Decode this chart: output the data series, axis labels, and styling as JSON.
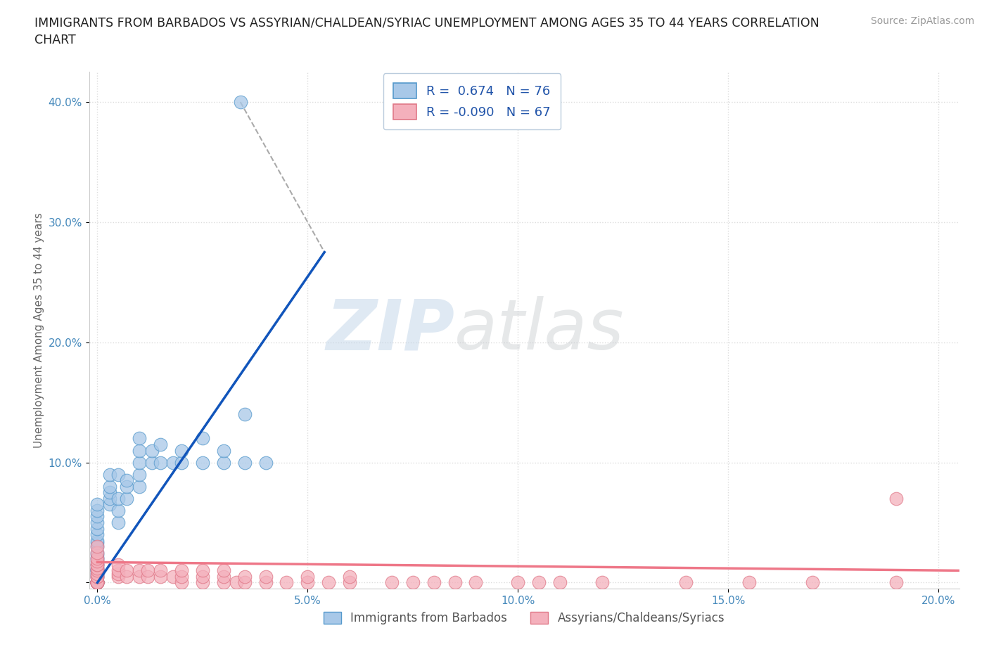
{
  "title_line1": "IMMIGRANTS FROM BARBADOS VS ASSYRIAN/CHALDEAN/SYRIAC UNEMPLOYMENT AMONG AGES 35 TO 44 YEARS CORRELATION",
  "title_line2": "CHART",
  "source_text": "Source: ZipAtlas.com",
  "ylabel": "Unemployment Among Ages 35 to 44 years",
  "xlim": [
    -0.002,
    0.205
  ],
  "ylim": [
    -0.005,
    0.425
  ],
  "xticks": [
    0.0,
    0.05,
    0.1,
    0.15,
    0.2
  ],
  "xticklabels": [
    "0.0%",
    "5.0%",
    "10.0%",
    "15.0%",
    "20.0%"
  ],
  "yticks": [
    0.0,
    0.1,
    0.2,
    0.3,
    0.4
  ],
  "yticklabels": [
    "",
    "10.0%",
    "20.0%",
    "30.0%",
    "40.0%"
  ],
  "blue_R": 0.674,
  "blue_N": 76,
  "pink_R": -0.09,
  "pink_N": 67,
  "blue_color": "#a8c8e8",
  "pink_color": "#f4b0bc",
  "blue_edge_color": "#5599cc",
  "pink_edge_color": "#e07888",
  "blue_line_color": "#1155bb",
  "pink_line_color": "#ee7788",
  "blue_label": "Immigrants from Barbados",
  "pink_label": "Assyrians/Chaldeans/Syriacs",
  "watermark_zip": "ZIP",
  "watermark_atlas": "atlas",
  "background_color": "#ffffff",
  "grid_color": "#dddddd",
  "title_color": "#222222",
  "source_color": "#999999",
  "axis_label_color": "#666666",
  "tick_color": "#4488bb",
  "legend_text_color": "#2255aa",
  "title_fontsize": 12.5,
  "axis_label_fontsize": 11,
  "tick_fontsize": 11,
  "legend_fontsize": 13,
  "blue_line_x": [
    0.0,
    0.054
  ],
  "blue_line_y": [
    0.0,
    0.275
  ],
  "pink_line_x": [
    0.0,
    0.205
  ],
  "pink_line_y": [
    0.017,
    0.01
  ],
  "dash_line_x": [
    0.034,
    0.054
  ],
  "dash_line_y": [
    0.4,
    0.275
  ],
  "blue_scatter_x": [
    0.0,
    0.0,
    0.0,
    0.0,
    0.0,
    0.0,
    0.0,
    0.0,
    0.0,
    0.0,
    0.0,
    0.0,
    0.0,
    0.0,
    0.0,
    0.0,
    0.0,
    0.0,
    0.0,
    0.0,
    0.0,
    0.0,
    0.0,
    0.0,
    0.0,
    0.0,
    0.0,
    0.0,
    0.0,
    0.0,
    0.0,
    0.0,
    0.0,
    0.0,
    0.0,
    0.0,
    0.0,
    0.0,
    0.0,
    0.0,
    0.0,
    0.0,
    0.0,
    0.0,
    0.003,
    0.003,
    0.003,
    0.003,
    0.003,
    0.005,
    0.005,
    0.005,
    0.005,
    0.007,
    0.007,
    0.007,
    0.01,
    0.01,
    0.01,
    0.01,
    0.01,
    0.013,
    0.013,
    0.015,
    0.015,
    0.018,
    0.02,
    0.02,
    0.025,
    0.025,
    0.03,
    0.03,
    0.035,
    0.04,
    0.035,
    0.034
  ],
  "blue_scatter_y": [
    0.0,
    0.0,
    0.0,
    0.0,
    0.0,
    0.0,
    0.0,
    0.0,
    0.0,
    0.0,
    0.0,
    0.0,
    0.0,
    0.0,
    0.0,
    0.0,
    0.0,
    0.0,
    0.005,
    0.005,
    0.007,
    0.007,
    0.01,
    0.01,
    0.01,
    0.01,
    0.012,
    0.012,
    0.015,
    0.015,
    0.018,
    0.02,
    0.02,
    0.023,
    0.025,
    0.03,
    0.033,
    0.035,
    0.04,
    0.045,
    0.05,
    0.055,
    0.06,
    0.065,
    0.065,
    0.07,
    0.075,
    0.08,
    0.09,
    0.05,
    0.06,
    0.07,
    0.09,
    0.07,
    0.08,
    0.085,
    0.08,
    0.09,
    0.1,
    0.11,
    0.12,
    0.1,
    0.11,
    0.1,
    0.115,
    0.1,
    0.1,
    0.11,
    0.1,
    0.12,
    0.1,
    0.11,
    0.1,
    0.1,
    0.14,
    0.4
  ],
  "pink_scatter_x": [
    0.0,
    0.0,
    0.0,
    0.0,
    0.0,
    0.0,
    0.0,
    0.0,
    0.0,
    0.0,
    0.0,
    0.0,
    0.0,
    0.0,
    0.0,
    0.0,
    0.0,
    0.0,
    0.0,
    0.0,
    0.005,
    0.005,
    0.005,
    0.005,
    0.007,
    0.007,
    0.01,
    0.01,
    0.012,
    0.012,
    0.015,
    0.015,
    0.018,
    0.02,
    0.02,
    0.02,
    0.025,
    0.025,
    0.025,
    0.03,
    0.03,
    0.03,
    0.033,
    0.035,
    0.035,
    0.04,
    0.04,
    0.045,
    0.05,
    0.05,
    0.055,
    0.06,
    0.06,
    0.07,
    0.075,
    0.08,
    0.085,
    0.09,
    0.1,
    0.105,
    0.11,
    0.12,
    0.14,
    0.155,
    0.17,
    0.19,
    0.19
  ],
  "pink_scatter_y": [
    0.0,
    0.0,
    0.0,
    0.0,
    0.0,
    0.0,
    0.0,
    0.0,
    0.0,
    0.005,
    0.005,
    0.007,
    0.01,
    0.012,
    0.015,
    0.015,
    0.018,
    0.02,
    0.025,
    0.03,
    0.005,
    0.007,
    0.01,
    0.015,
    0.005,
    0.01,
    0.005,
    0.01,
    0.005,
    0.01,
    0.005,
    0.01,
    0.005,
    0.0,
    0.005,
    0.01,
    0.0,
    0.005,
    0.01,
    0.0,
    0.005,
    0.01,
    0.0,
    0.0,
    0.005,
    0.0,
    0.005,
    0.0,
    0.0,
    0.005,
    0.0,
    0.0,
    0.005,
    0.0,
    0.0,
    0.0,
    0.0,
    0.0,
    0.0,
    0.0,
    0.0,
    0.0,
    0.0,
    0.0,
    0.0,
    0.0,
    0.07
  ]
}
